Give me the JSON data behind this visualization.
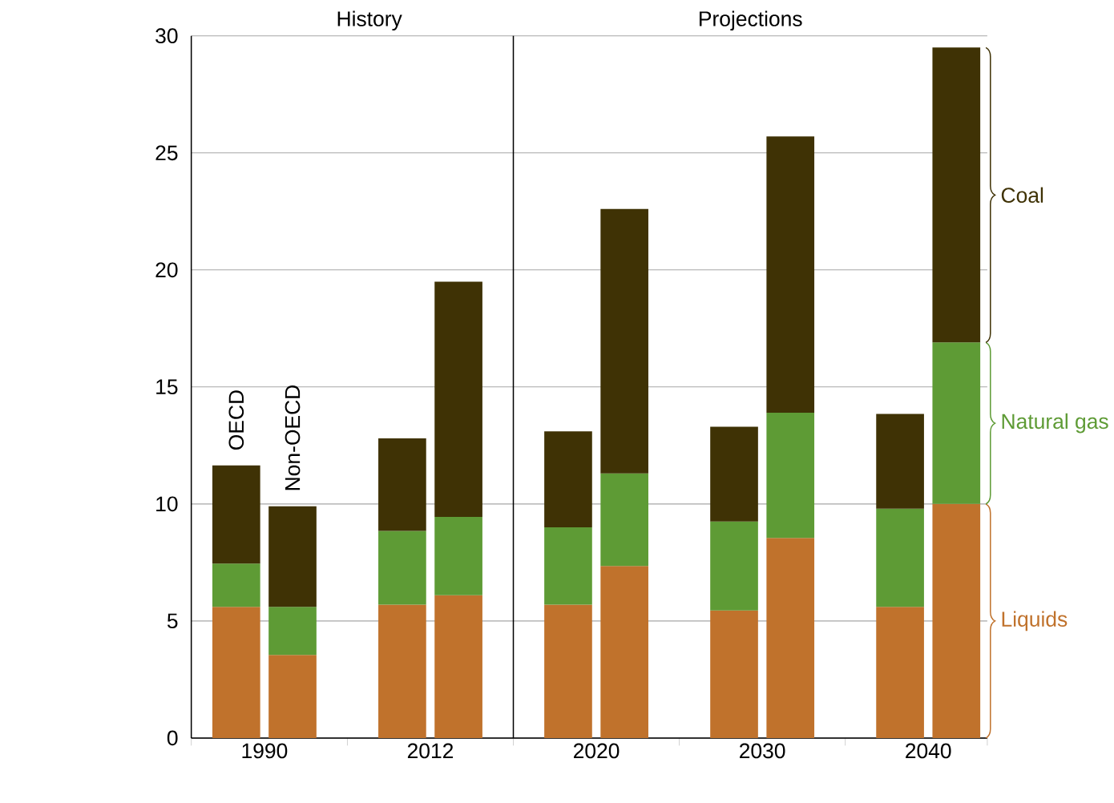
{
  "chart_data": {
    "type": "bar",
    "stacked": true,
    "categories": [
      null,
      null,
      null,
      null,
      null,
      null,
      null,
      null,
      null,
      null
    ],
    "series": [
      {
        "name": "Liquids",
        "color": "#c0722c",
        "values": [
          5.6,
          3.55,
          5.7,
          6.1,
          5.7,
          7.35,
          5.45,
          8.55,
          5.6,
          10.0
        ]
      },
      {
        "name": "Natural gas",
        "color": "#5e9b35",
        "values": [
          1.85,
          2.05,
          3.15,
          3.35,
          3.3,
          3.95,
          3.8,
          5.35,
          4.2,
          6.9
        ]
      },
      {
        "name": "Coal",
        "color": "#3f3205",
        "values": [
          4.2,
          4.3,
          3.95,
          10.05,
          4.1,
          11.3,
          4.05,
          11.8,
          4.05,
          12.6
        ]
      }
    ],
    "ylim": [
      0,
      30
    ],
    "yticks": [
      0,
      5,
      10,
      15,
      20,
      25,
      30
    ],
    "grid": "y",
    "annotations": [
      "1990",
      "2012",
      "2020",
      "2030",
      "2040",
      "History",
      "Projections",
      "OECD",
      "Non-OECD"
    ]
  }
}
